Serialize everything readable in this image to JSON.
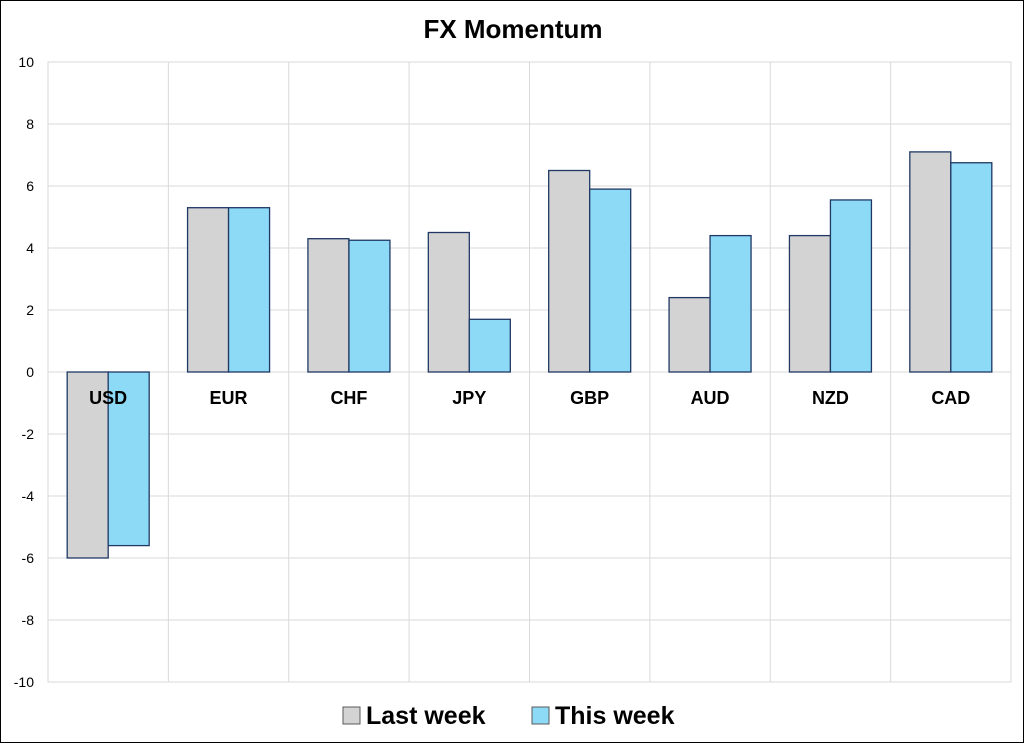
{
  "chart_data": {
    "type": "bar",
    "title": "FX Momentum",
    "categories": [
      "USD",
      "EUR",
      "CHF",
      "JPY",
      "GBP",
      "AUD",
      "NZD",
      "CAD"
    ],
    "series": [
      {
        "name": "Last week",
        "values": [
          -6.0,
          5.3,
          4.3,
          4.5,
          6.5,
          2.4,
          4.4,
          7.1
        ],
        "color": "#d3d3d3"
      },
      {
        "name": "This week",
        "values": [
          -5.6,
          5.3,
          4.25,
          1.7,
          5.9,
          4.4,
          5.55,
          6.75
        ],
        "color": "#8ddaf6"
      }
    ],
    "ylim": [
      -10,
      10
    ],
    "yticks": [
      "10",
      "8",
      "6",
      "4",
      "2",
      "0",
      "-2",
      "-4",
      "-6",
      "-8",
      "-10"
    ],
    "grid": true,
    "legend_position": "bottom",
    "bar_outline_color": "#1f3864"
  }
}
